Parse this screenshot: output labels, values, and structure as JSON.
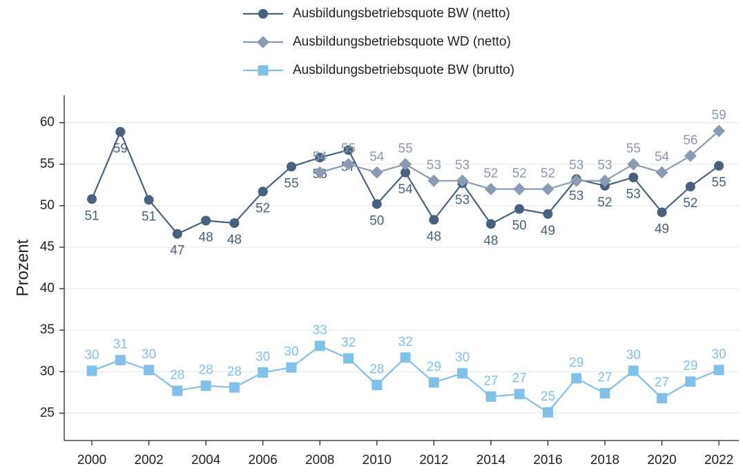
{
  "chart_data": {
    "type": "line",
    "y_label": "Prozent",
    "x": [
      2000,
      2001,
      2002,
      2003,
      2004,
      2005,
      2006,
      2007,
      2008,
      2009,
      2010,
      2011,
      2012,
      2013,
      2014,
      2015,
      2016,
      2017,
      2018,
      2019,
      2020,
      2021,
      2022
    ],
    "xlim": [
      1999.03,
      2022.7
    ],
    "xticks": [
      2000,
      2002,
      2004,
      2006,
      2008,
      2010,
      2012,
      2014,
      2016,
      2018,
      2020,
      2022
    ],
    "ylim": [
      21.7,
      63.3
    ],
    "yticks": [
      25,
      30,
      35,
      40,
      45,
      50,
      55,
      60
    ],
    "grid": true,
    "legend": "top",
    "series": [
      {
        "name": "Ausbildungsbetriebsquote BW (netto)",
        "color": "#46627f",
        "marker": "circle",
        "label_position": "below",
        "values": [
          50.8,
          58.9,
          50.7,
          46.6,
          48.2,
          47.9,
          51.7,
          54.7,
          55.8,
          56.7,
          50.2,
          54.0,
          48.3,
          52.7,
          47.8,
          49.6,
          49.0,
          53.2,
          52.4,
          53.4,
          49.2,
          52.3,
          54.8
        ],
        "value_labels": [
          "51",
          "59",
          "51",
          "47",
          "48",
          "48",
          "52",
          "55",
          "56",
          "57",
          "50",
          "54",
          "48",
          "53",
          "48",
          "50",
          "49",
          "53",
          "52",
          "53",
          "49",
          "52",
          "55"
        ]
      },
      {
        "name": "Ausbildungsbetriebsquote WD (netto)",
        "color": "#8a9ab2",
        "marker": "diamond",
        "label_position": "above",
        "values": [
          null,
          null,
          null,
          null,
          null,
          null,
          null,
          null,
          54,
          55,
          54,
          55,
          53,
          53,
          52,
          52,
          52,
          53,
          53,
          55,
          54,
          56,
          59
        ]
      },
      {
        "name": "Ausbildungsbetriebsquote BW (brutto)",
        "color": "#80c0e9",
        "marker": "square",
        "label_position": "above",
        "values": [
          30.1,
          31.4,
          30.2,
          27.7,
          28.3,
          28.1,
          29.9,
          30.5,
          33.1,
          31.6,
          28.4,
          31.7,
          28.7,
          29.8,
          27.0,
          27.3,
          25.1,
          29.2,
          27.4,
          30.1,
          26.8,
          28.8,
          30.2
        ],
        "value_labels": [
          "30",
          "31",
          "30",
          "28",
          "28",
          "28",
          "30",
          "30",
          "33",
          "32",
          "28",
          "32",
          "29",
          "30",
          "27",
          "27",
          "25",
          "29",
          "27",
          "30",
          "27",
          "29",
          "30"
        ]
      }
    ]
  }
}
